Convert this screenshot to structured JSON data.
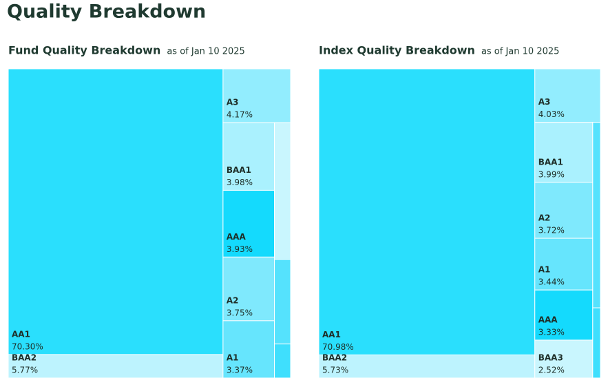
{
  "title": "Quality Breakdown",
  "chart_data": [
    {
      "type": "treemap",
      "title": "Fund Quality Breakdown",
      "subtitle": "as of Jan 10 2025",
      "categories": [
        "AA1",
        "BAA2",
        "A3",
        "BAA1",
        "AAA",
        "A2",
        "A1",
        null,
        null,
        null
      ],
      "values": [
        70.3,
        5.77,
        4.17,
        3.98,
        3.93,
        3.75,
        3.37,
        2.53,
        1.57,
        0.63
      ],
      "value_labels": [
        "70.30%",
        "5.77%",
        "4.17%",
        "3.98%",
        "3.93%",
        "3.75%",
        "3.37%",
        null,
        null,
        null
      ],
      "colors": [
        "#2adffd",
        "#bdf3fe",
        "#92edfe",
        "#aaf1fe",
        "#14dafd",
        "#7fe9fd",
        "#66e5fd",
        "#c9f6fe",
        "#55e2fd",
        "#3fdffd"
      ]
    },
    {
      "type": "treemap",
      "title": "Index Quality Breakdown",
      "subtitle": "as of Jan 10 2025",
      "categories": [
        "AA1",
        "BAA2",
        "A3",
        "BAA1",
        "A2",
        "A1",
        "AAA",
        "BAA3",
        null,
        null
      ],
      "values": [
        70.98,
        5.73,
        4.03,
        3.99,
        3.72,
        3.44,
        3.33,
        2.52,
        1.64,
        0.62
      ],
      "value_labels": [
        "70.98%",
        "5.73%",
        "4.03%",
        "3.99%",
        "3.72%",
        "3.44%",
        "3.33%",
        "2.52%",
        null,
        null
      ],
      "colors": [
        "#2adffd",
        "#bdf3fe",
        "#92edfe",
        "#aaf1fe",
        "#7fe9fd",
        "#66e5fd",
        "#14dafd",
        "#c9f6fe",
        "#55e2fd",
        "#3fdffd"
      ]
    }
  ]
}
